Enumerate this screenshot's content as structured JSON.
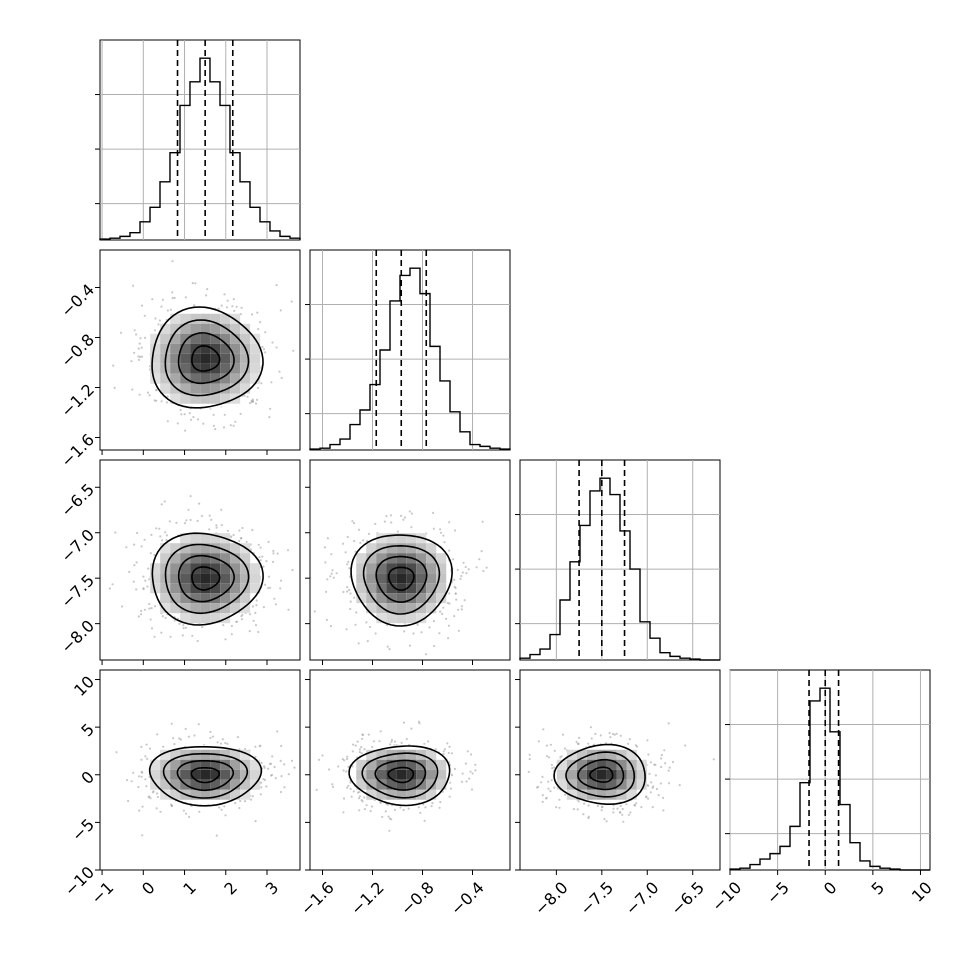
{
  "chart_data": {
    "type": "corner",
    "parameters": [
      {
        "median": 1.5,
        "q16": 0.83,
        "q84": 2.17,
        "range": [
          -1.05,
          3.8
        ],
        "ticks": [
          -1,
          0,
          1,
          2,
          3
        ],
        "tick_labels": [
          "−1",
          "0",
          "1",
          "2",
          "3"
        ]
      },
      {
        "median": -0.97,
        "q16": -1.17,
        "q84": -0.77,
        "range": [
          -1.7,
          -0.1
        ],
        "ticks": [
          -1.6,
          -1.2,
          -0.8,
          -0.4
        ],
        "tick_labels": [
          "−1.6",
          "−1.2",
          "−0.8",
          "−0.4"
        ]
      },
      {
        "median": -7.5,
        "q16": -7.75,
        "q84": -7.25,
        "range": [
          -8.4,
          -6.2
        ],
        "ticks": [
          -8.0,
          -7.5,
          -7.0,
          -6.5
        ],
        "tick_labels": [
          "−8.0",
          "−7.5",
          "−7.0",
          "−6.5"
        ]
      },
      {
        "median": 0.0,
        "q16": -1.7,
        "q84": 1.4,
        "range": [
          -10,
          11
        ],
        "ticks": [
          -10,
          -5,
          0,
          5,
          10
        ],
        "tick_labels": [
          "−10",
          "−5",
          "0",
          "5",
          "10"
        ]
      }
    ],
    "histograms": [
      {
        "param": 0,
        "edges": [
          -1.05,
          -0.807,
          -0.565,
          -0.323,
          -0.08,
          0.163,
          0.405,
          0.647,
          0.89,
          1.132,
          1.375,
          1.617,
          1.86,
          2.102,
          2.345,
          2.587,
          2.83,
          3.072,
          3.315,
          3.557,
          3.8
        ],
        "counts": [
          0.5,
          1,
          2,
          4,
          10,
          18,
          32,
          48,
          74,
          87,
          100,
          87,
          74,
          48,
          32,
          18,
          10,
          5,
          2,
          1
        ]
      },
      {
        "param": 1,
        "edges": [
          -1.7,
          -1.62,
          -1.54,
          -1.46,
          -1.38,
          -1.3,
          -1.22,
          -1.14,
          -1.06,
          -0.98,
          -0.9,
          -0.82,
          -0.74,
          -0.66,
          -0.58,
          -0.5,
          -0.42,
          -0.34,
          -0.26,
          -0.18,
          -0.1
        ],
        "counts": [
          0.5,
          1,
          3,
          6,
          14,
          22,
          36,
          55,
          82,
          96,
          100,
          86,
          57,
          38,
          21,
          10,
          3,
          2,
          1,
          0.5
        ]
      },
      {
        "param": 2,
        "edges": [
          -8.4,
          -8.29,
          -8.18,
          -8.07,
          -7.96,
          -7.85,
          -7.74,
          -7.63,
          -7.52,
          -7.41,
          -7.3,
          -7.19,
          -7.08,
          -6.97,
          -6.86,
          -6.75,
          -6.64,
          -6.53,
          -6.42,
          -6.31,
          -6.2
        ],
        "counts": [
          1,
          3,
          6,
          14,
          33,
          54,
          74,
          93,
          100,
          91,
          71,
          50,
          21,
          12,
          4,
          2,
          1,
          0.5,
          0,
          0
        ]
      },
      {
        "param": 3,
        "edges": [
          -10,
          -8.95,
          -7.9,
          -6.85,
          -5.8,
          -4.75,
          -3.7,
          -2.65,
          -1.6,
          -0.55,
          0.5,
          1.55,
          2.6,
          3.65,
          4.7,
          5.75,
          6.8,
          7.85,
          8.9,
          9.95,
          11
        ],
        "counts": [
          0.5,
          1,
          3,
          6,
          9,
          13,
          24,
          48,
          93,
          100,
          76,
          36,
          15,
          5,
          2,
          1,
          0.5,
          0,
          0,
          0
        ]
      }
    ],
    "grid": true,
    "contour_levels_sigma": [
      0.5,
      1.0,
      1.5,
      2.0
    ],
    "quantile_lines": "dashed"
  }
}
